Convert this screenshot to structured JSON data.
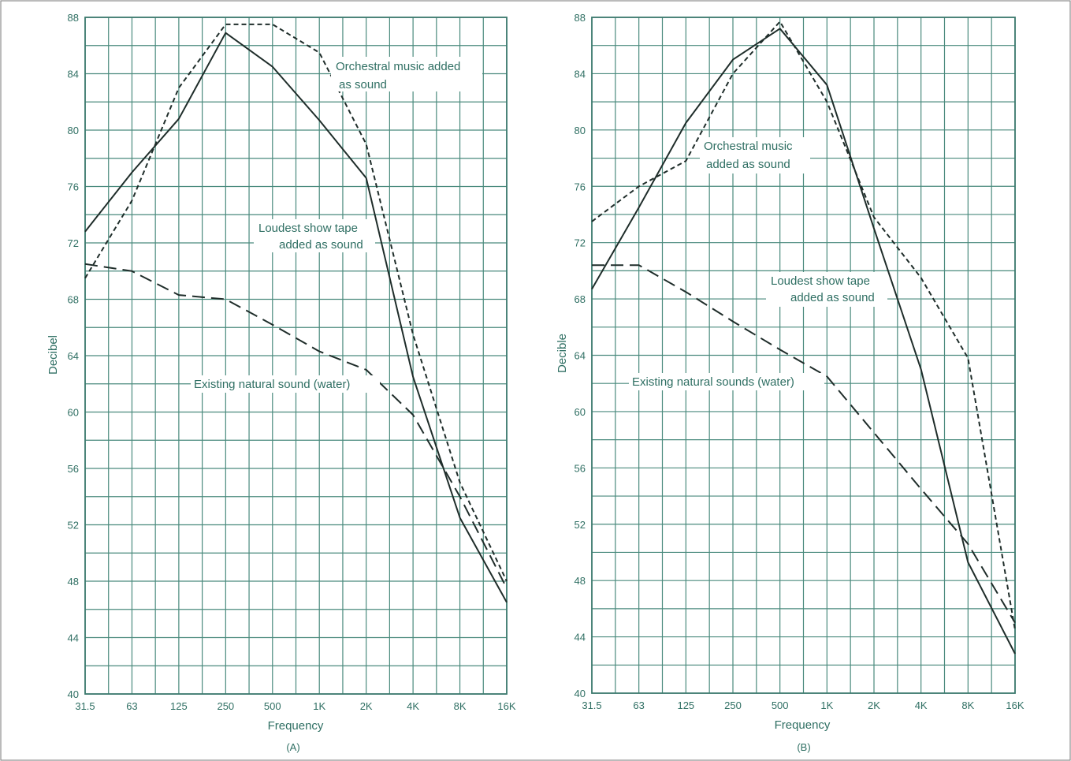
{
  "colors": {
    "grid": "#4a8a7d",
    "text": "#2f6f63",
    "series": "#1f2d2a"
  },
  "chart_data": [
    {
      "type": "line",
      "panel_label": "(A)",
      "xlabel": "Frequency",
      "ylabel": "Decibel",
      "categories": [
        "31.5",
        "63",
        "125",
        "250",
        "500",
        "1K",
        "2K",
        "4K",
        "8K",
        "16K"
      ],
      "ylim": [
        40,
        88
      ],
      "yticks": [
        "40",
        "44",
        "48",
        "52",
        "56",
        "60",
        "64",
        "68",
        "72",
        "76",
        "80",
        "84",
        "88"
      ],
      "grid": true,
      "series": [
        {
          "name": "Orchestral music added as sound",
          "style": "short-dash",
          "values": [
            69.5,
            75,
            83,
            87.5,
            87.5,
            85.5,
            79,
            65.5,
            55,
            48
          ]
        },
        {
          "name": "Loudest show tape added as sound",
          "style": "solid",
          "values": [
            72.8,
            77,
            80.8,
            86.9,
            84.5,
            80.7,
            76.6,
            62.5,
            52.5,
            46.5
          ]
        },
        {
          "name": "Existing natural sound (water)",
          "style": "long-dash",
          "values": [
            70.5,
            70,
            68.3,
            68,
            66.2,
            64.3,
            63,
            59.8,
            54,
            47.5
          ]
        }
      ],
      "annotations": [
        {
          "lines": [
            "Orchestral music added",
            "as sound"
          ]
        },
        {
          "lines": [
            "Loudest show tape",
            "added as sound"
          ]
        },
        {
          "lines": [
            "Existing natural sound (water)"
          ]
        }
      ]
    },
    {
      "type": "line",
      "panel_label": "(B)",
      "xlabel": "Frequency",
      "ylabel": "Decible",
      "categories": [
        "31.5",
        "63",
        "125",
        "250",
        "500",
        "1K",
        "2K",
        "4K",
        "8K",
        "16K"
      ],
      "ylim": [
        40,
        88
      ],
      "yticks": [
        "40",
        "44",
        "48",
        "52",
        "56",
        "60",
        "64",
        "68",
        "72",
        "76",
        "80",
        "84",
        "88"
      ],
      "grid": true,
      "series": [
        {
          "name": "Orchestral music added as sound",
          "style": "short-dash",
          "values": [
            73.5,
            76,
            77.8,
            84,
            87.7,
            82,
            73.8,
            69.5,
            63.8,
            44.5
          ]
        },
        {
          "name": "Loudest show tape added as sound",
          "style": "solid",
          "values": [
            68.7,
            74.5,
            80.5,
            85,
            87.2,
            83.2,
            73,
            63,
            49.3,
            42.8
          ]
        },
        {
          "name": "Existing natural sounds (water)",
          "style": "long-dash",
          "values": [
            70.4,
            70.4,
            68.5,
            66.4,
            64.4,
            62.5,
            58.5,
            54.5,
            50.6,
            45
          ]
        }
      ],
      "annotations": [
        {
          "lines": [
            "Orchestral music",
            "added as sound"
          ]
        },
        {
          "lines": [
            "Loudest show tape",
            "added as sound"
          ]
        },
        {
          "lines": [
            "Existing natural sounds (water)"
          ]
        }
      ]
    }
  ]
}
